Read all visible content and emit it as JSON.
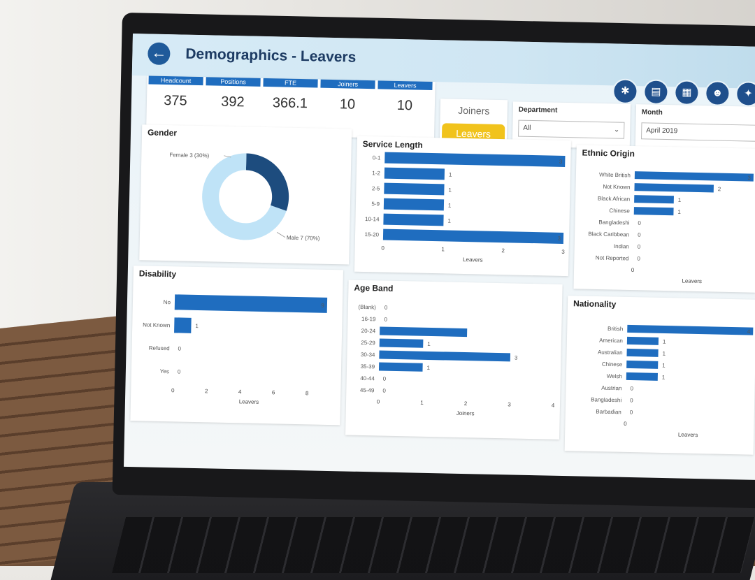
{
  "header": {
    "title": "Demographics - Leavers",
    "back_icon": "arrow-left-icon",
    "nav_icons": [
      "network-icon",
      "chart-icon",
      "building-icon",
      "person-icon",
      "handshake-icon"
    ]
  },
  "kpis": [
    {
      "label": "Headcount",
      "value": "375"
    },
    {
      "label": "Positions",
      "value": "392"
    },
    {
      "label": "FTE",
      "value": "366.1"
    },
    {
      "label": "Joiners",
      "value": "10"
    },
    {
      "label": "Leavers",
      "value": "10"
    }
  ],
  "toggle": {
    "joiners": "Joiners",
    "leavers": "Leavers",
    "selected": "Leavers"
  },
  "slicers": {
    "department": {
      "title": "Department",
      "value": "All"
    },
    "month": {
      "title": "Month",
      "value": "April 2019"
    }
  },
  "colors": {
    "accent": "#1f6dbf",
    "highlight": "#f1c31c",
    "donut_dark": "#1d4c7e",
    "donut_light": "#bfe3f7"
  },
  "chart_data": [
    {
      "id": "gender",
      "type": "pie",
      "title": "Gender",
      "categories": [
        "Female",
        "Male"
      ],
      "values": [
        3,
        7
      ],
      "labels": [
        "Female 3 (30%)",
        "Male 7 (70%)"
      ]
    },
    {
      "id": "service",
      "type": "bar",
      "title": "Service Length",
      "categories": [
        "0-1",
        "1-2",
        "2-5",
        "5-9",
        "10-14",
        "15-20"
      ],
      "values": [
        3,
        1,
        1,
        1,
        1,
        3
      ],
      "xticks": [
        "0",
        "1",
        "2",
        "3"
      ],
      "xlabel": "Leavers",
      "xlim": [
        0,
        3
      ]
    },
    {
      "id": "ethnic",
      "type": "bar",
      "title": "Ethnic Origin",
      "categories": [
        "White British",
        "Not Known",
        "Black African",
        "Chinese",
        "Bangladeshi",
        "Black Caribbean",
        "Indian",
        "Not Reported"
      ],
      "values": [
        3,
        2,
        1,
        1,
        0,
        0,
        0,
        0
      ],
      "xticks": [
        "0"
      ],
      "xlabel": "Leavers",
      "xlim": [
        0,
        3
      ]
    },
    {
      "id": "disability",
      "type": "bar",
      "title": "Disability",
      "categories": [
        "No",
        "Not Known",
        "Refused",
        "Yes"
      ],
      "values": [
        9,
        1,
        0,
        0
      ],
      "xticks": [
        "0",
        "2",
        "4",
        "6",
        "8"
      ],
      "xlabel": "Leavers",
      "xlim": [
        0,
        9
      ]
    },
    {
      "id": "age",
      "type": "bar",
      "title": "Age Band",
      "categories": [
        "(Blank)",
        "16-19",
        "20-24",
        "25-29",
        "30-34",
        "35-39",
        "40-44",
        "45-49"
      ],
      "values": [
        0,
        0,
        2,
        1,
        3,
        1,
        0,
        0
      ],
      "show_labels": [
        "0",
        "0",
        "",
        "1",
        "3",
        "1",
        "0",
        "0"
      ],
      "note_values": [
        0,
        0,
        3,
        1,
        4,
        1,
        0,
        0
      ],
      "xticks": [
        "0",
        "1",
        "2",
        "3",
        "4"
      ],
      "xlabel": "Joiners",
      "xlim": [
        0,
        4
      ]
    },
    {
      "id": "nationality",
      "type": "bar",
      "title": "Nationality",
      "categories": [
        "British",
        "American",
        "Australian",
        "Chinese",
        "Welsh",
        "Austrian",
        "Bangladeshi",
        "Barbadian"
      ],
      "values": [
        4,
        1,
        1,
        1,
        1,
        0,
        0,
        0
      ],
      "xticks": [
        "0"
      ],
      "xlabel": "Leavers",
      "xlim": [
        0,
        4
      ]
    }
  ]
}
